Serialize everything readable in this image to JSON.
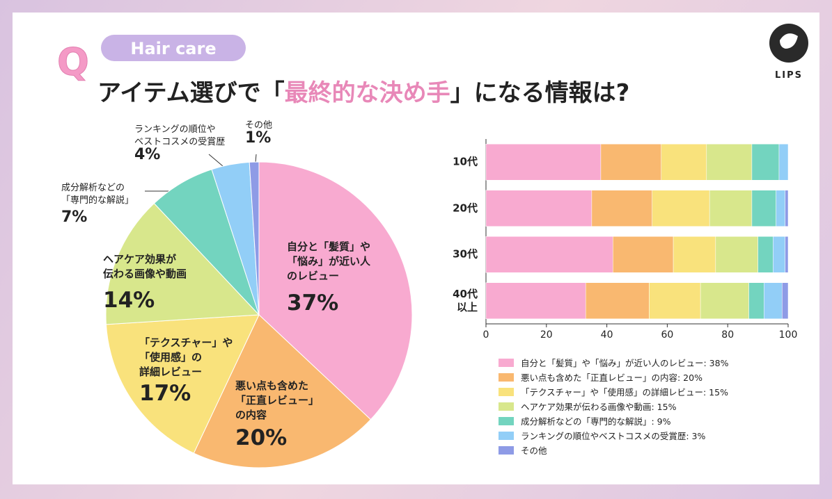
{
  "header": {
    "badge": "Hair care",
    "q": "Q",
    "title": [
      "アイテム選びで「",
      "最終的な決め手",
      "」になる情報は?"
    ]
  },
  "logo": "LIPS",
  "chart_data": [
    {
      "type": "pie",
      "categories": [
        "自分と「髪質」や\n「悩み」が近い人\nのレビュー",
        "悪い点も含めた\n「正直レビュー」\nの内容",
        "「テクスチャー」や\n「使用感」の\n詳細レビュー",
        "ヘアケア効果が\n伝わる画像や動画",
        "成分解析などの\n「専門的な解説」",
        "ランキングの順位や\nベストコスメの受賞歴",
        "その他"
      ],
      "values": [
        37,
        20,
        17,
        14,
        7,
        4,
        1
      ],
      "value_labels": [
        "37%",
        "20%",
        "17%",
        "14%",
        "7%",
        "4%",
        "1%"
      ],
      "colors": [
        "#f8aad0",
        "#f9b870",
        "#f9e27c",
        "#d8e78c",
        "#73d4bf",
        "#92cef7",
        "#8e9be6"
      ]
    },
    {
      "type": "bar",
      "orientation": "horizontal",
      "stacked": true,
      "categories": [
        "10代",
        "20代",
        "30代",
        "40代\n以上"
      ],
      "series": [
        {
          "name": "自分と「髪質」や「悩み」が近い人のレビュー: 38%",
          "color": "#f8aad0",
          "values": [
            38,
            35,
            42,
            33
          ]
        },
        {
          "name": "悪い点も含めた「正直レビュー」の内容: 20%",
          "color": "#f9b870",
          "values": [
            20,
            20,
            20,
            21
          ]
        },
        {
          "name": "「テクスチャー」や「使用感」の詳細レビュー: 15%",
          "color": "#f9e27c",
          "values": [
            15,
            19,
            14,
            17
          ]
        },
        {
          "name": "ヘアケア効果が伝わる画像や動画: 15%",
          "color": "#d8e78c",
          "values": [
            15,
            14,
            14,
            16
          ]
        },
        {
          "name": "成分解析などの「専門的な解説」: 9%",
          "color": "#73d4bf",
          "values": [
            9,
            8,
            5,
            5
          ]
        },
        {
          "name": "ランキングの順位やベストコスメの受賞歴: 3%",
          "color": "#92cef7",
          "values": [
            3,
            3,
            4,
            6
          ]
        },
        {
          "name": "その他",
          "color": "#8e9be6",
          "values": [
            0,
            1,
            1,
            2
          ]
        }
      ],
      "xlim": [
        0,
        100
      ],
      "xticks": [
        0,
        20,
        40,
        60,
        80,
        100
      ],
      "legend": "bottom"
    }
  ]
}
